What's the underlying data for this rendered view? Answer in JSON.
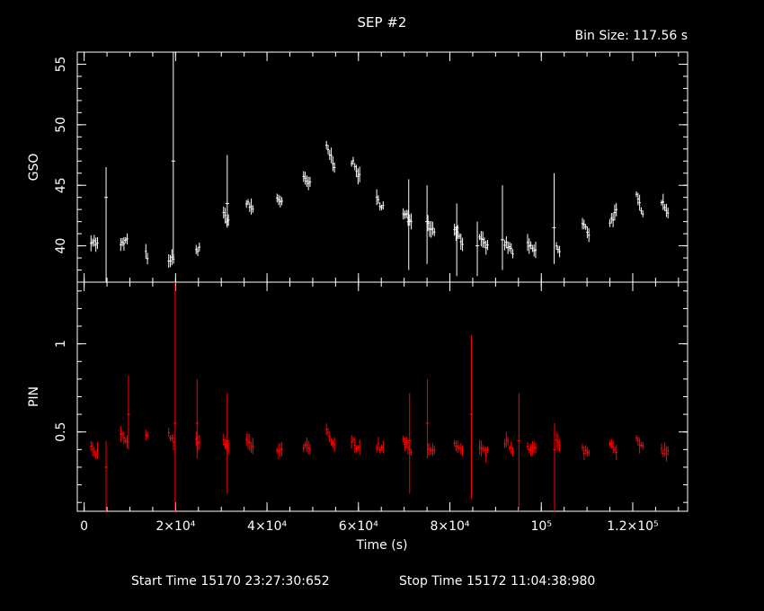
{
  "title": "SEP #2",
  "bin_size": "Bin Size: 117.56 s",
  "footer": {
    "start": "Start Time 15170 23:27:30:652",
    "stop": "Stop Time 15172 11:04:38:980"
  },
  "colors": {
    "gso": "#ffffff",
    "pin": "#ff0000",
    "axes": "#ffffff",
    "background": "#000000"
  },
  "chart_data": {
    "type": "scatter",
    "xlabel": "Time (s)",
    "xlim": [
      -1500,
      132000
    ],
    "x_ticks": [
      {
        "value": 0,
        "label": "0"
      },
      {
        "value": 20000,
        "label": "2×10⁴"
      },
      {
        "value": 40000,
        "label": "4×10⁴"
      },
      {
        "value": 60000,
        "label": "6×10⁴"
      },
      {
        "value": 80000,
        "label": "8×10⁴"
      },
      {
        "value": 100000,
        "label": "10⁵"
      },
      {
        "value": 120000,
        "label": "1.2×10⁵"
      }
    ],
    "panels": [
      {
        "name": "GSO",
        "ylabel": "GSO",
        "ylim": [
          37,
          56
        ],
        "y_ticks": [
          40,
          45,
          50,
          55
        ],
        "segments": [
          {
            "x": [
              1500,
              3200
            ],
            "y": [
              40.5,
              40.0
            ]
          },
          {
            "x": [
              8000,
              9500
            ],
            "y": [
              40.0,
              40.5
            ]
          },
          {
            "x": [
              13500,
              14000
            ],
            "y": [
              39.3,
              39.1
            ]
          },
          {
            "x": [
              18500,
              19600
            ],
            "y": [
              38.5,
              39.0
            ]
          },
          {
            "x": [
              24500,
              25300
            ],
            "y": [
              39.5,
              40.0
            ]
          },
          {
            "x": [
              30500,
              31800
            ],
            "y": [
              42.5,
              42.0
            ]
          },
          {
            "x": [
              35500,
              37000
            ],
            "y": [
              43.5,
              43.0
            ]
          },
          {
            "x": [
              42200,
              43600
            ],
            "y": [
              44.0,
              43.5
            ]
          },
          {
            "x": [
              48000,
              49500
            ],
            "y": [
              45.5,
              45.0
            ]
          },
          {
            "x": [
              53000,
              55000
            ],
            "y": [
              48.2,
              46.5
            ]
          },
          {
            "x": [
              58500,
              60500
            ],
            "y": [
              47.0,
              45.5
            ]
          },
          {
            "x": [
              64000,
              65600
            ],
            "y": [
              43.8,
              43.2
            ]
          },
          {
            "x": [
              69800,
              71600
            ],
            "y": [
              42.5,
              42.3
            ]
          },
          {
            "x": [
              75200,
              76800
            ],
            "y": [
              41.8,
              41.2
            ]
          },
          {
            "x": [
              81000,
              82800
            ],
            "y": [
              41.5,
              40.3
            ]
          },
          {
            "x": [
              86500,
              88400
            ],
            "y": [
              40.5,
              39.8
            ]
          },
          {
            "x": [
              92000,
              93800
            ],
            "y": [
              40.2,
              39.5
            ]
          },
          {
            "x": [
              97000,
              98800
            ],
            "y": [
              40.0,
              39.5
            ]
          },
          {
            "x": [
              103300,
              104300
            ],
            "y": [
              40.0,
              39.2
            ]
          },
          {
            "x": [
              109000,
              110500
            ],
            "y": [
              41.8,
              41.0
            ]
          },
          {
            "x": [
              115000,
              116500
            ],
            "y": [
              42.0,
              42.8
            ]
          },
          {
            "x": [
              120800,
              122300
            ],
            "y": [
              44.0,
              42.8
            ]
          },
          {
            "x": [
              126300,
              127800
            ],
            "y": [
              43.8,
              42.8
            ]
          }
        ],
        "spikes": [
          {
            "x": 4800,
            "y": 44.0,
            "lo": 37.0,
            "hi": 46.5
          },
          {
            "x": 19500,
            "y": 47.0,
            "lo": 39.0,
            "hi": 56.0
          },
          {
            "x": 31300,
            "y": 43.5,
            "lo": 41.5,
            "hi": 47.5
          },
          {
            "x": 71000,
            "y": 42.0,
            "lo": 38.0,
            "hi": 45.5
          },
          {
            "x": 75000,
            "y": 42.0,
            "lo": 38.5,
            "hi": 45.0
          },
          {
            "x": 81500,
            "y": 41.5,
            "lo": 37.5,
            "hi": 43.5
          },
          {
            "x": 86000,
            "y": 40.0,
            "lo": 37.5,
            "hi": 42.0
          },
          {
            "x": 91500,
            "y": 40.5,
            "lo": 38.0,
            "hi": 45.0
          },
          {
            "x": 102800,
            "y": 41.5,
            "lo": 38.5,
            "hi": 46.0
          }
        ]
      },
      {
        "name": "PIN",
        "ylabel": "PIN",
        "ylim": [
          0.05,
          1.35
        ],
        "y_ticks": [
          0.5,
          1
        ],
        "segments": [
          {
            "x": [
              1500,
              3200
            ],
            "y": [
              0.4,
              0.38
            ]
          },
          {
            "x": [
              8000,
              9500
            ],
            "y": [
              0.5,
              0.45
            ]
          },
          {
            "x": [
              13500,
              14000
            ],
            "y": [
              0.48,
              0.45
            ]
          },
          {
            "x": [
              18500,
              19600
            ],
            "y": [
              0.5,
              0.45
            ]
          },
          {
            "x": [
              24500,
              25300
            ],
            "y": [
              0.45,
              0.42
            ]
          },
          {
            "x": [
              30500,
              31800
            ],
            "y": [
              0.45,
              0.4
            ]
          },
          {
            "x": [
              35500,
              37000
            ],
            "y": [
              0.45,
              0.4
            ]
          },
          {
            "x": [
              42200,
              43600
            ],
            "y": [
              0.4,
              0.38
            ]
          },
          {
            "x": [
              48000,
              49500
            ],
            "y": [
              0.42,
              0.4
            ]
          },
          {
            "x": [
              53000,
              55000
            ],
            "y": [
              0.5,
              0.4
            ]
          },
          {
            "x": [
              58500,
              60500
            ],
            "y": [
              0.45,
              0.4
            ]
          },
          {
            "x": [
              64000,
              65600
            ],
            "y": [
              0.42,
              0.4
            ]
          },
          {
            "x": [
              69800,
              71600
            ],
            "y": [
              0.45,
              0.38
            ]
          },
          {
            "x": [
              75200,
              76800
            ],
            "y": [
              0.42,
              0.38
            ]
          },
          {
            "x": [
              81000,
              82800
            ],
            "y": [
              0.42,
              0.38
            ]
          },
          {
            "x": [
              86500,
              88400
            ],
            "y": [
              0.4,
              0.38
            ]
          },
          {
            "x": [
              92000,
              93800
            ],
            "y": [
              0.45,
              0.4
            ]
          },
          {
            "x": [
              97000,
              98800
            ],
            "y": [
              0.42,
              0.4
            ]
          },
          {
            "x": [
              103300,
              104300
            ],
            "y": [
              0.45,
              0.4
            ]
          },
          {
            "x": [
              109000,
              110500
            ],
            "y": [
              0.4,
              0.38
            ]
          },
          {
            "x": [
              115000,
              116500
            ],
            "y": [
              0.45,
              0.4
            ]
          },
          {
            "x": [
              120800,
              122300
            ],
            "y": [
              0.45,
              0.4
            ]
          },
          {
            "x": [
              126300,
              127800
            ],
            "y": [
              0.4,
              0.38
            ]
          }
        ],
        "spikes": [
          {
            "x": 4800,
            "y": 0.3,
            "lo": 0.05,
            "hi": 0.45
          },
          {
            "x": 9700,
            "y": 0.6,
            "lo": 0.4,
            "hi": 0.82
          },
          {
            "x": 19900,
            "y": 0.55,
            "lo": 0.05,
            "hi": 1.35
          },
          {
            "x": 24700,
            "y": 0.55,
            "lo": 0.35,
            "hi": 0.8
          },
          {
            "x": 31300,
            "y": 0.45,
            "lo": 0.15,
            "hi": 0.72
          },
          {
            "x": 71200,
            "y": 0.45,
            "lo": 0.15,
            "hi": 0.72
          },
          {
            "x": 75100,
            "y": 0.55,
            "lo": 0.35,
            "hi": 0.8
          },
          {
            "x": 84700,
            "y": 0.6,
            "lo": 0.12,
            "hi": 1.05
          },
          {
            "x": 95100,
            "y": 0.45,
            "lo": 0.05,
            "hi": 0.72
          },
          {
            "x": 102900,
            "y": 0.4,
            "lo": 0.05,
            "hi": 0.55
          }
        ]
      }
    ]
  }
}
